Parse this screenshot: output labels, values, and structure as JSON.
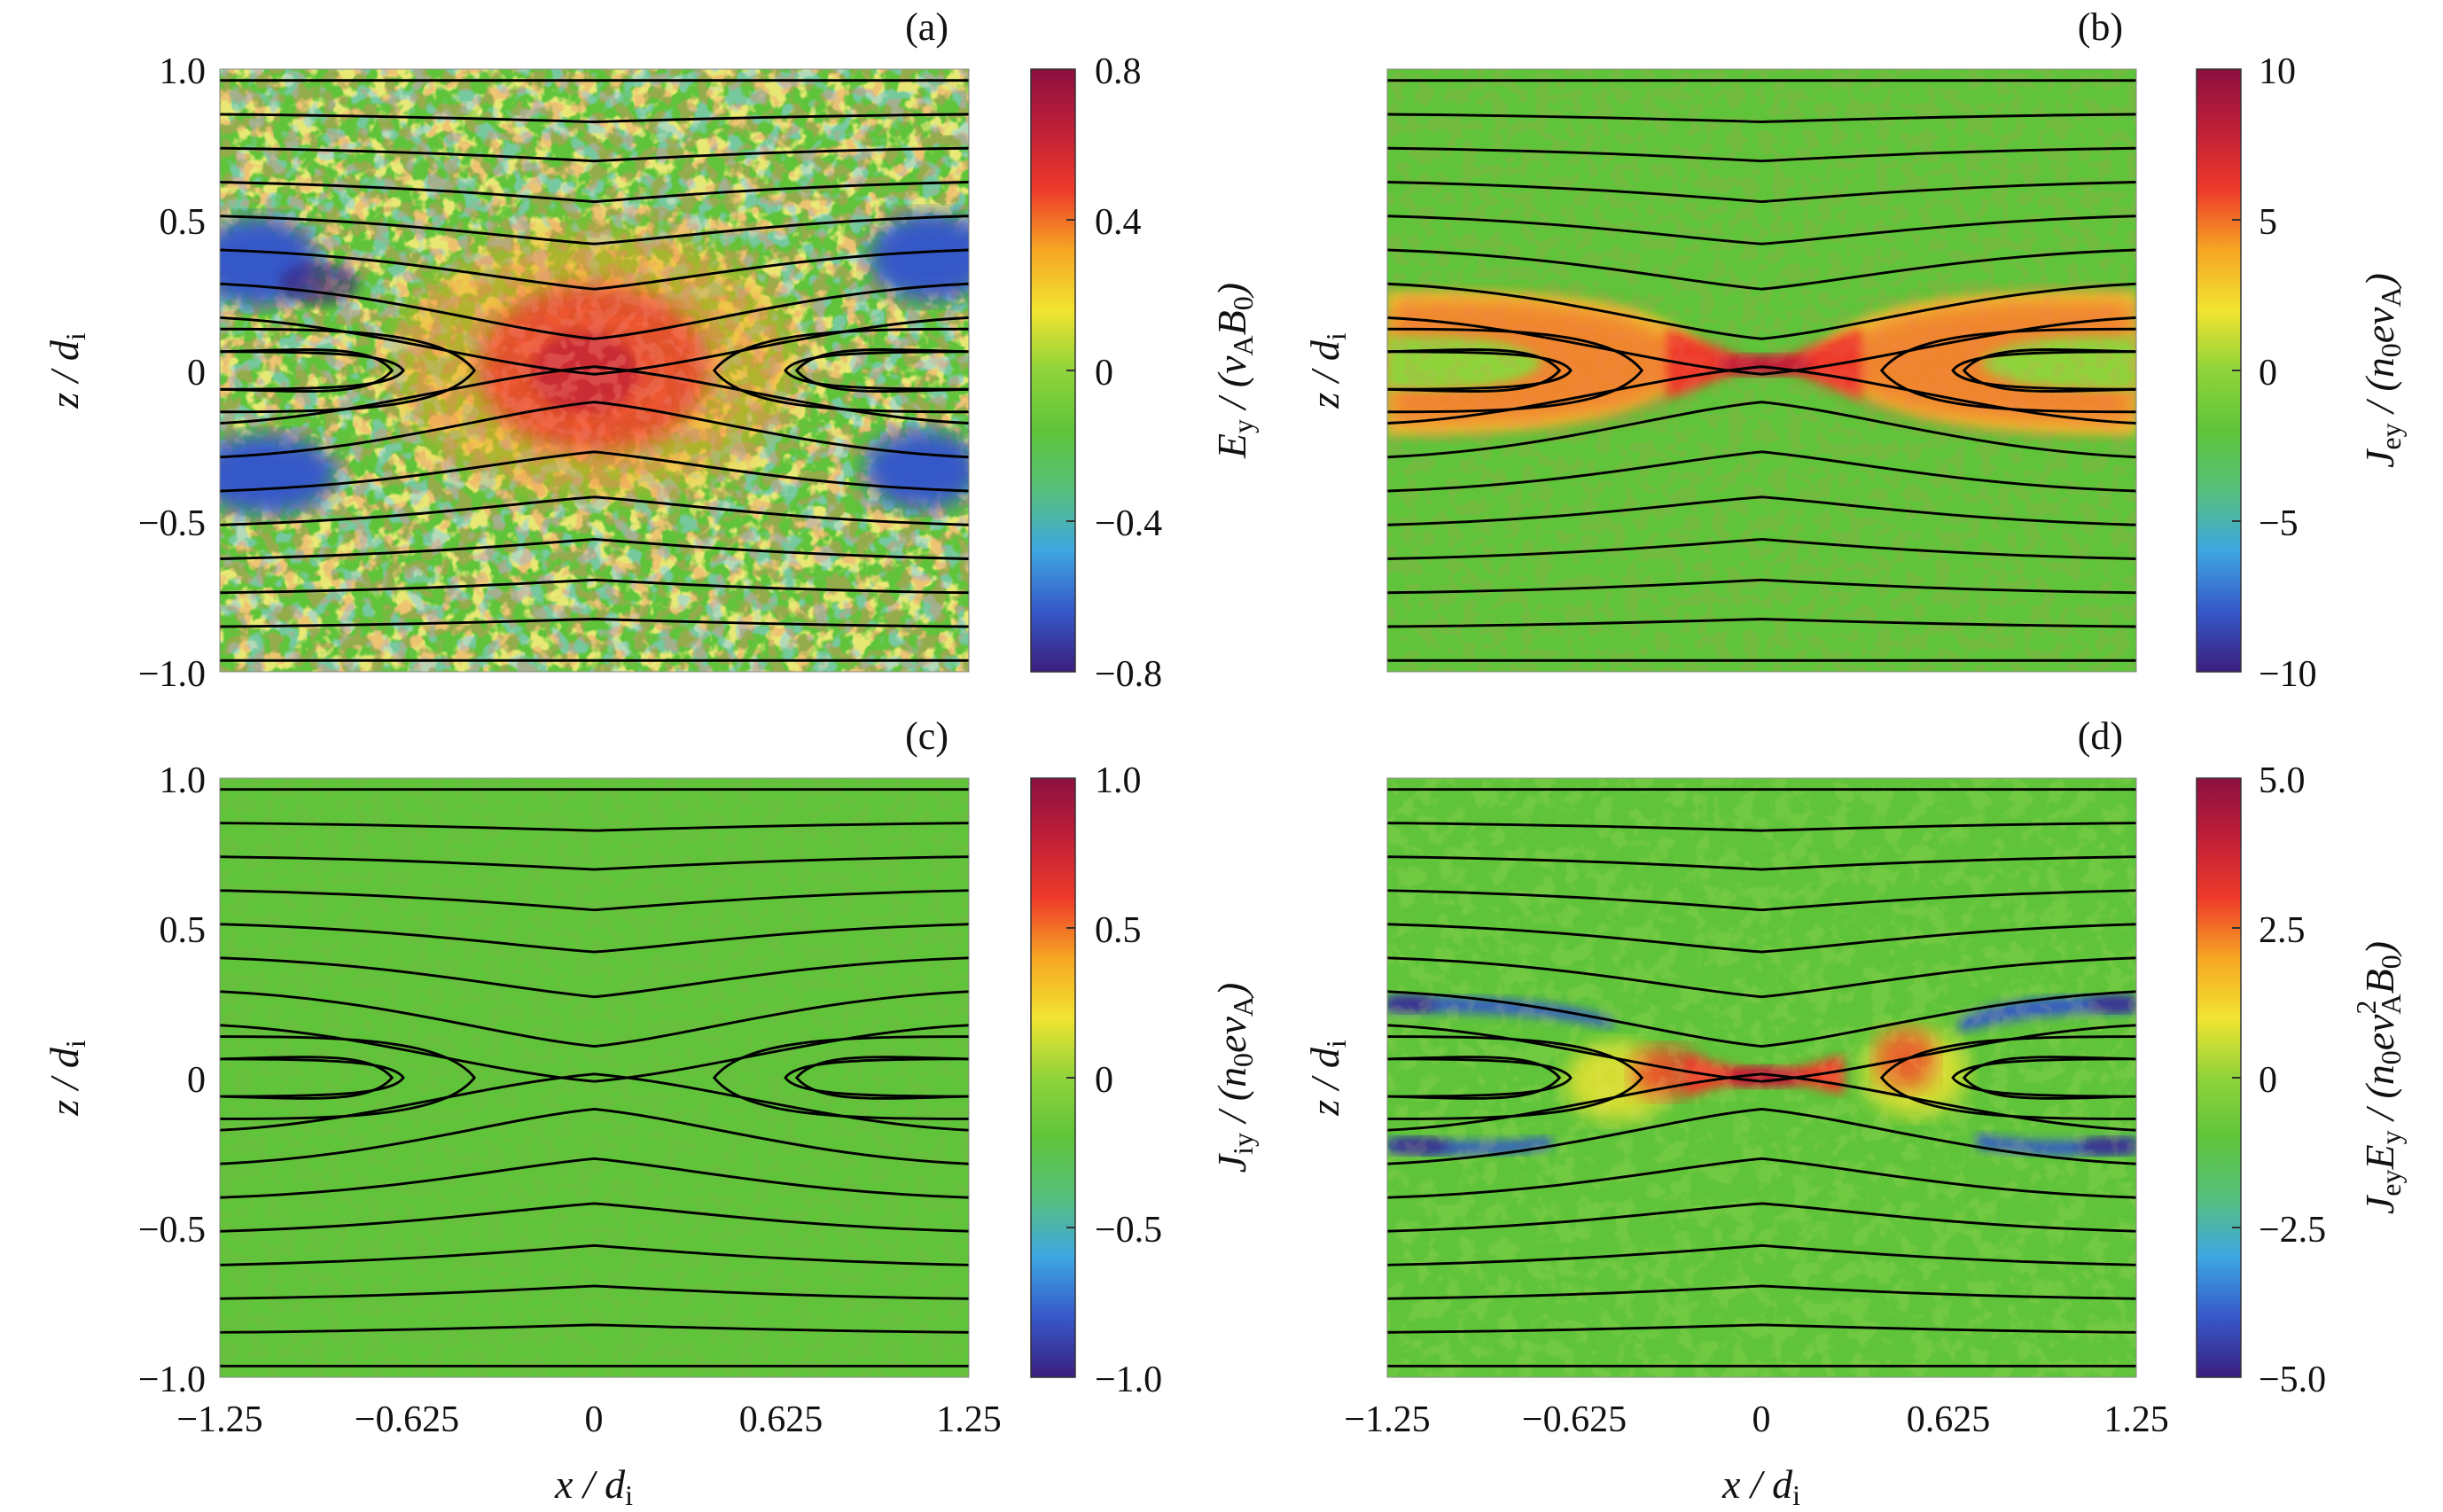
{
  "figure": {
    "background": "#ffffff",
    "field_line_color": "#000000",
    "colormap": [
      "#3a1f7e",
      "#3658c8",
      "#3ea6e2",
      "#56c07c",
      "#5fc43a",
      "#8fd33a",
      "#f2e431",
      "#f5a623",
      "#ee3a2a",
      "#c01f38",
      "#8c1040"
    ]
  },
  "chart_data": [
    {
      "type": "heatmap",
      "panel_label": "(a)",
      "field": "Ey",
      "description_of_structure": "noisy electric field with red enhancement at X-point and blue patches at separatrix edges",
      "xlabel": "x / d",
      "xlabel_sub": "i",
      "ylabel": "z / d",
      "ylabel_sub": "i",
      "xlim": [
        -1.25,
        1.25
      ],
      "ylim": [
        -1.0,
        1.0
      ],
      "x_ticks": [],
      "y_ticks": [
        "1.0",
        "0.5",
        "0",
        "−0.5",
        "−1.0"
      ],
      "colorbar": {
        "range": [
          -0.8,
          0.8
        ],
        "ticks": [
          "0.8",
          "0.4",
          "0",
          "−0.4",
          "−0.8"
        ],
        "label_main": "E",
        "label_sub": "y",
        "label_rest": " / (v",
        "label_sub2": "A",
        "label_rest2": "B",
        "label_sub3": "0",
        "label_end": ")"
      }
    },
    {
      "type": "heatmap",
      "panel_label": "(b)",
      "field": "Jey",
      "xlabel": "",
      "ylabel": "z / d",
      "ylabel_sub": "i",
      "xlim": [
        -1.25,
        1.25
      ],
      "ylim": [
        -1.0,
        1.0
      ],
      "x_ticks": [],
      "y_ticks": [],
      "colorbar": {
        "range": [
          -10,
          10
        ],
        "ticks": [
          "10",
          "5",
          "0",
          "−5",
          "−10"
        ],
        "label_main": "J",
        "label_sub": "ey",
        "label_rest": " / (n",
        "label_sub2": "0",
        "label_rest2": "ev",
        "label_sub3": "A",
        "label_end": ")"
      }
    },
    {
      "type": "heatmap",
      "panel_label": "(c)",
      "field": "Jiy",
      "xlabel": "x / d",
      "xlabel_sub": "i",
      "ylabel": "z / d",
      "ylabel_sub": "i",
      "xlim": [
        -1.25,
        1.25
      ],
      "ylim": [
        -1.0,
        1.0
      ],
      "x_ticks": [
        "−1.25",
        "−0.625",
        "0",
        "0.625",
        "1.25"
      ],
      "y_ticks": [
        "1.0",
        "0.5",
        "0",
        "−0.5",
        "−1.0"
      ],
      "colorbar": {
        "range": [
          -1.0,
          1.0
        ],
        "ticks": [
          "1.0",
          "0.5",
          "0",
          "−0.5",
          "−1.0"
        ],
        "label_main": "J",
        "label_sub": "iy",
        "label_rest": " / (n",
        "label_sub2": "0",
        "label_rest2": "ev",
        "label_sub3": "A",
        "label_end": ")"
      }
    },
    {
      "type": "heatmap",
      "panel_label": "(d)",
      "field": "JeyEy",
      "xlabel": "x / d",
      "xlabel_sub": "i",
      "ylabel": "z / d",
      "ylabel_sub": "i",
      "xlim": [
        -1.25,
        1.25
      ],
      "ylim": [
        -1.0,
        1.0
      ],
      "x_ticks": [
        "−1.25",
        "−0.625",
        "0",
        "0.625",
        "1.25"
      ],
      "y_ticks": [],
      "colorbar": {
        "range": [
          -5.0,
          5.0
        ],
        "ticks": [
          "5.0",
          "2.5",
          "0",
          "−2.5",
          "−5.0"
        ],
        "label_main": "J",
        "label_sub": "ey",
        "label_rest": "E",
        "label_sub2": "y",
        "label_rest2": " / (n",
        "label_sub3": "0",
        "label_end": "ev",
        "label_sup": "2",
        "label_sub4": "A",
        "label_end2": "B",
        "label_sub5": "0",
        "label_end3": ")"
      }
    }
  ]
}
